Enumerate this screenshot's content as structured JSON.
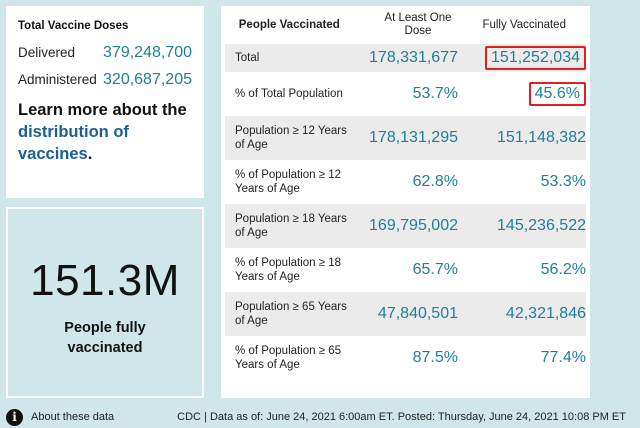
{
  "doses": {
    "title": "Total Vaccine Doses",
    "delivered_label": "Delivered",
    "delivered_value": "379,248,700",
    "administered_label": "Administered",
    "administered_value": "320,687,205",
    "learn_prefix": "Learn more about the ",
    "learn_link": "distribution of vaccines",
    "learn_suffix": "."
  },
  "big": {
    "value": "151.3M",
    "label": "People fully vaccinated"
  },
  "table": {
    "headers": [
      "People Vaccinated",
      "At Least One Dose",
      "Fully Vaccinated"
    ],
    "rows": [
      {
        "label": "Total",
        "one_dose": "178,331,677",
        "fully": "151,252,034"
      },
      {
        "label": "% of Total Population",
        "one_dose": "53.7%",
        "fully": "45.6%"
      },
      {
        "label": "Population ≥ 12 Years of Age",
        "one_dose": "178,131,295",
        "fully": "151,148,382"
      },
      {
        "label": "% of Population ≥ 12 Years of Age",
        "one_dose": "62.8%",
        "fully": "53.3%"
      },
      {
        "label": "Population ≥ 18 Years of Age",
        "one_dose": "169,795,002",
        "fully": "145,236,522"
      },
      {
        "label": "% of Population ≥ 18 Years of Age",
        "one_dose": "65.7%",
        "fully": "56.2%"
      },
      {
        "label": "Population ≥ 65 Years of Age",
        "one_dose": "47,840,501",
        "fully": "42,321,846"
      },
      {
        "label": "% of Population ≥ 65 Years of Age",
        "one_dose": "87.5%",
        "fully": "77.4%"
      }
    ]
  },
  "footer": {
    "info_icon": "i",
    "about": "About these data",
    "source": "CDC | Data as of: June 24, 2021 6:00am ET. Posted: Thursday, June 24, 2021 10:08 PM ET"
  },
  "colors": {
    "accent": "#1f7f96",
    "link": "#1a5f9a",
    "highlight": "#e02020",
    "background": "#cfe6ea"
  }
}
